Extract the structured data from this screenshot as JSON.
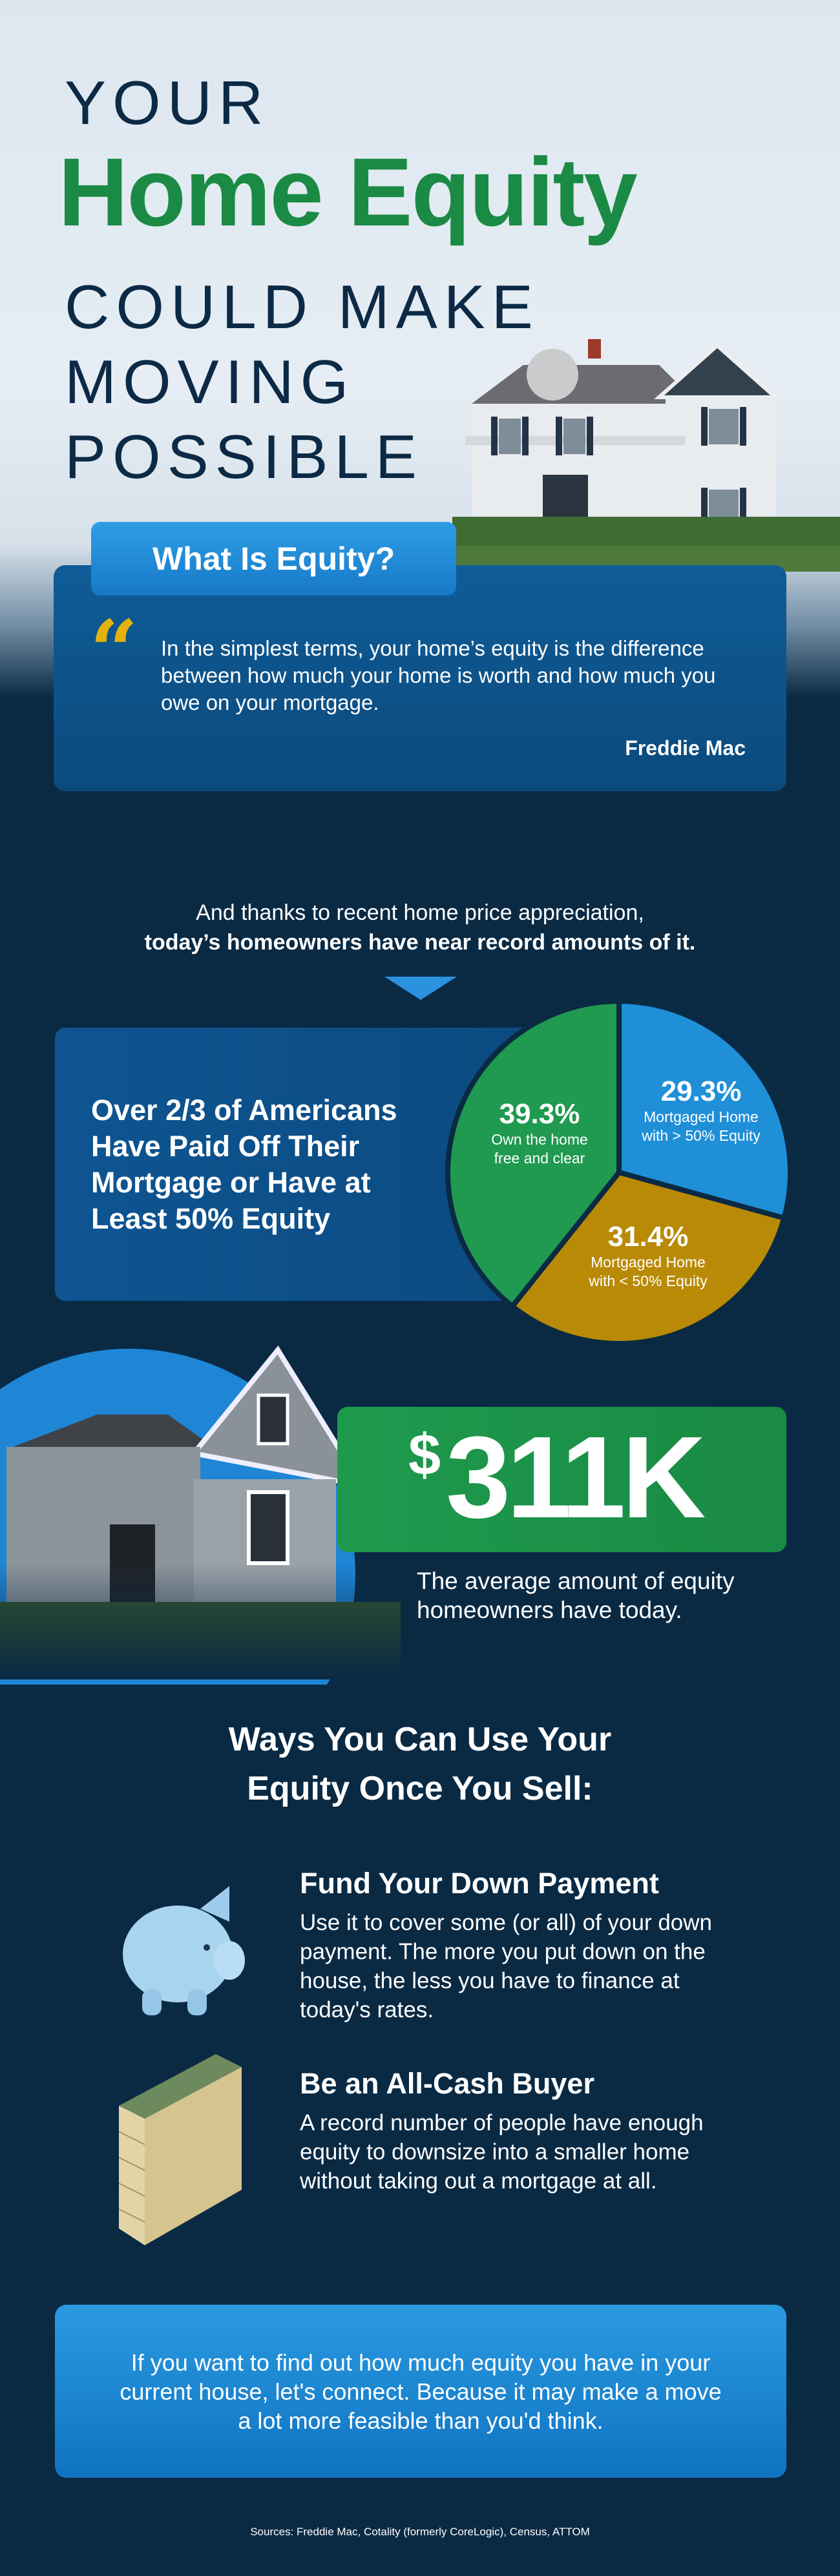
{
  "header": {
    "line1": "YOUR",
    "highlight": "Home Equity",
    "line2": "COULD MAKE",
    "line3": "MOVING",
    "line4": "POSSIBLE"
  },
  "what_is_equity": {
    "tab_label": "What Is Equity?",
    "quote": "In the simplest terms, your home’s equity is the difference between how much your home is worth and how much you owe on your mortgage.",
    "source": "Freddie Mac"
  },
  "intro": {
    "line1": "And thanks to recent home price appreciation,",
    "line2": "today’s homeowners have near record amounts of it."
  },
  "stat_box": {
    "heading": "Over 2/3 of Americans Have Paid Off Their Mortgage or Have at Least 50% Equity"
  },
  "chart_data": {
    "type": "pie",
    "slices": [
      {
        "label": "Mortgaged Home with > 50% Equity",
        "value": 29.3,
        "display": "29.3%",
        "color": "#1f8fd8"
      },
      {
        "label": "Mortgaged Home with < 50% Equity",
        "value": 31.4,
        "display": "31.4%",
        "color": "#b98a06"
      },
      {
        "label": "Own the home free and clear",
        "value": 39.3,
        "display": "39.3%",
        "color": "#1f9a50"
      }
    ]
  },
  "average_equity": {
    "currency": "$",
    "amount": "311K",
    "caption": "The average amount of equity homeowners have today."
  },
  "ways": {
    "title_line1": "Ways You Can Use Your",
    "title_line2": "Equity Once You Sell:",
    "items": [
      {
        "icon": "piggy-bank-icon",
        "title": "Fund Your Down Payment",
        "body": "Use it to cover some (or all) of your down payment. The more you put down on the house, the less you have to finance at today's rates."
      },
      {
        "icon": "cash-stack-icon",
        "title": "Be an All-Cash Buyer",
        "body": "A record number of people have enough equity to downsize into a smaller home without taking out a mortgage at all."
      }
    ]
  },
  "cta": {
    "text": "If you want to find out how much equity you have in your current house, let's connect. Because it may make a move a lot more feasible than you'd think."
  },
  "sources": "Sources: Freddie Mac, Cotality (formerly CoreLogic), Census, ATTOM",
  "colors": {
    "navy": "#0a2a44",
    "green": "#1b8a44",
    "blue": "#1f86d6",
    "gold": "#e2b20f"
  }
}
